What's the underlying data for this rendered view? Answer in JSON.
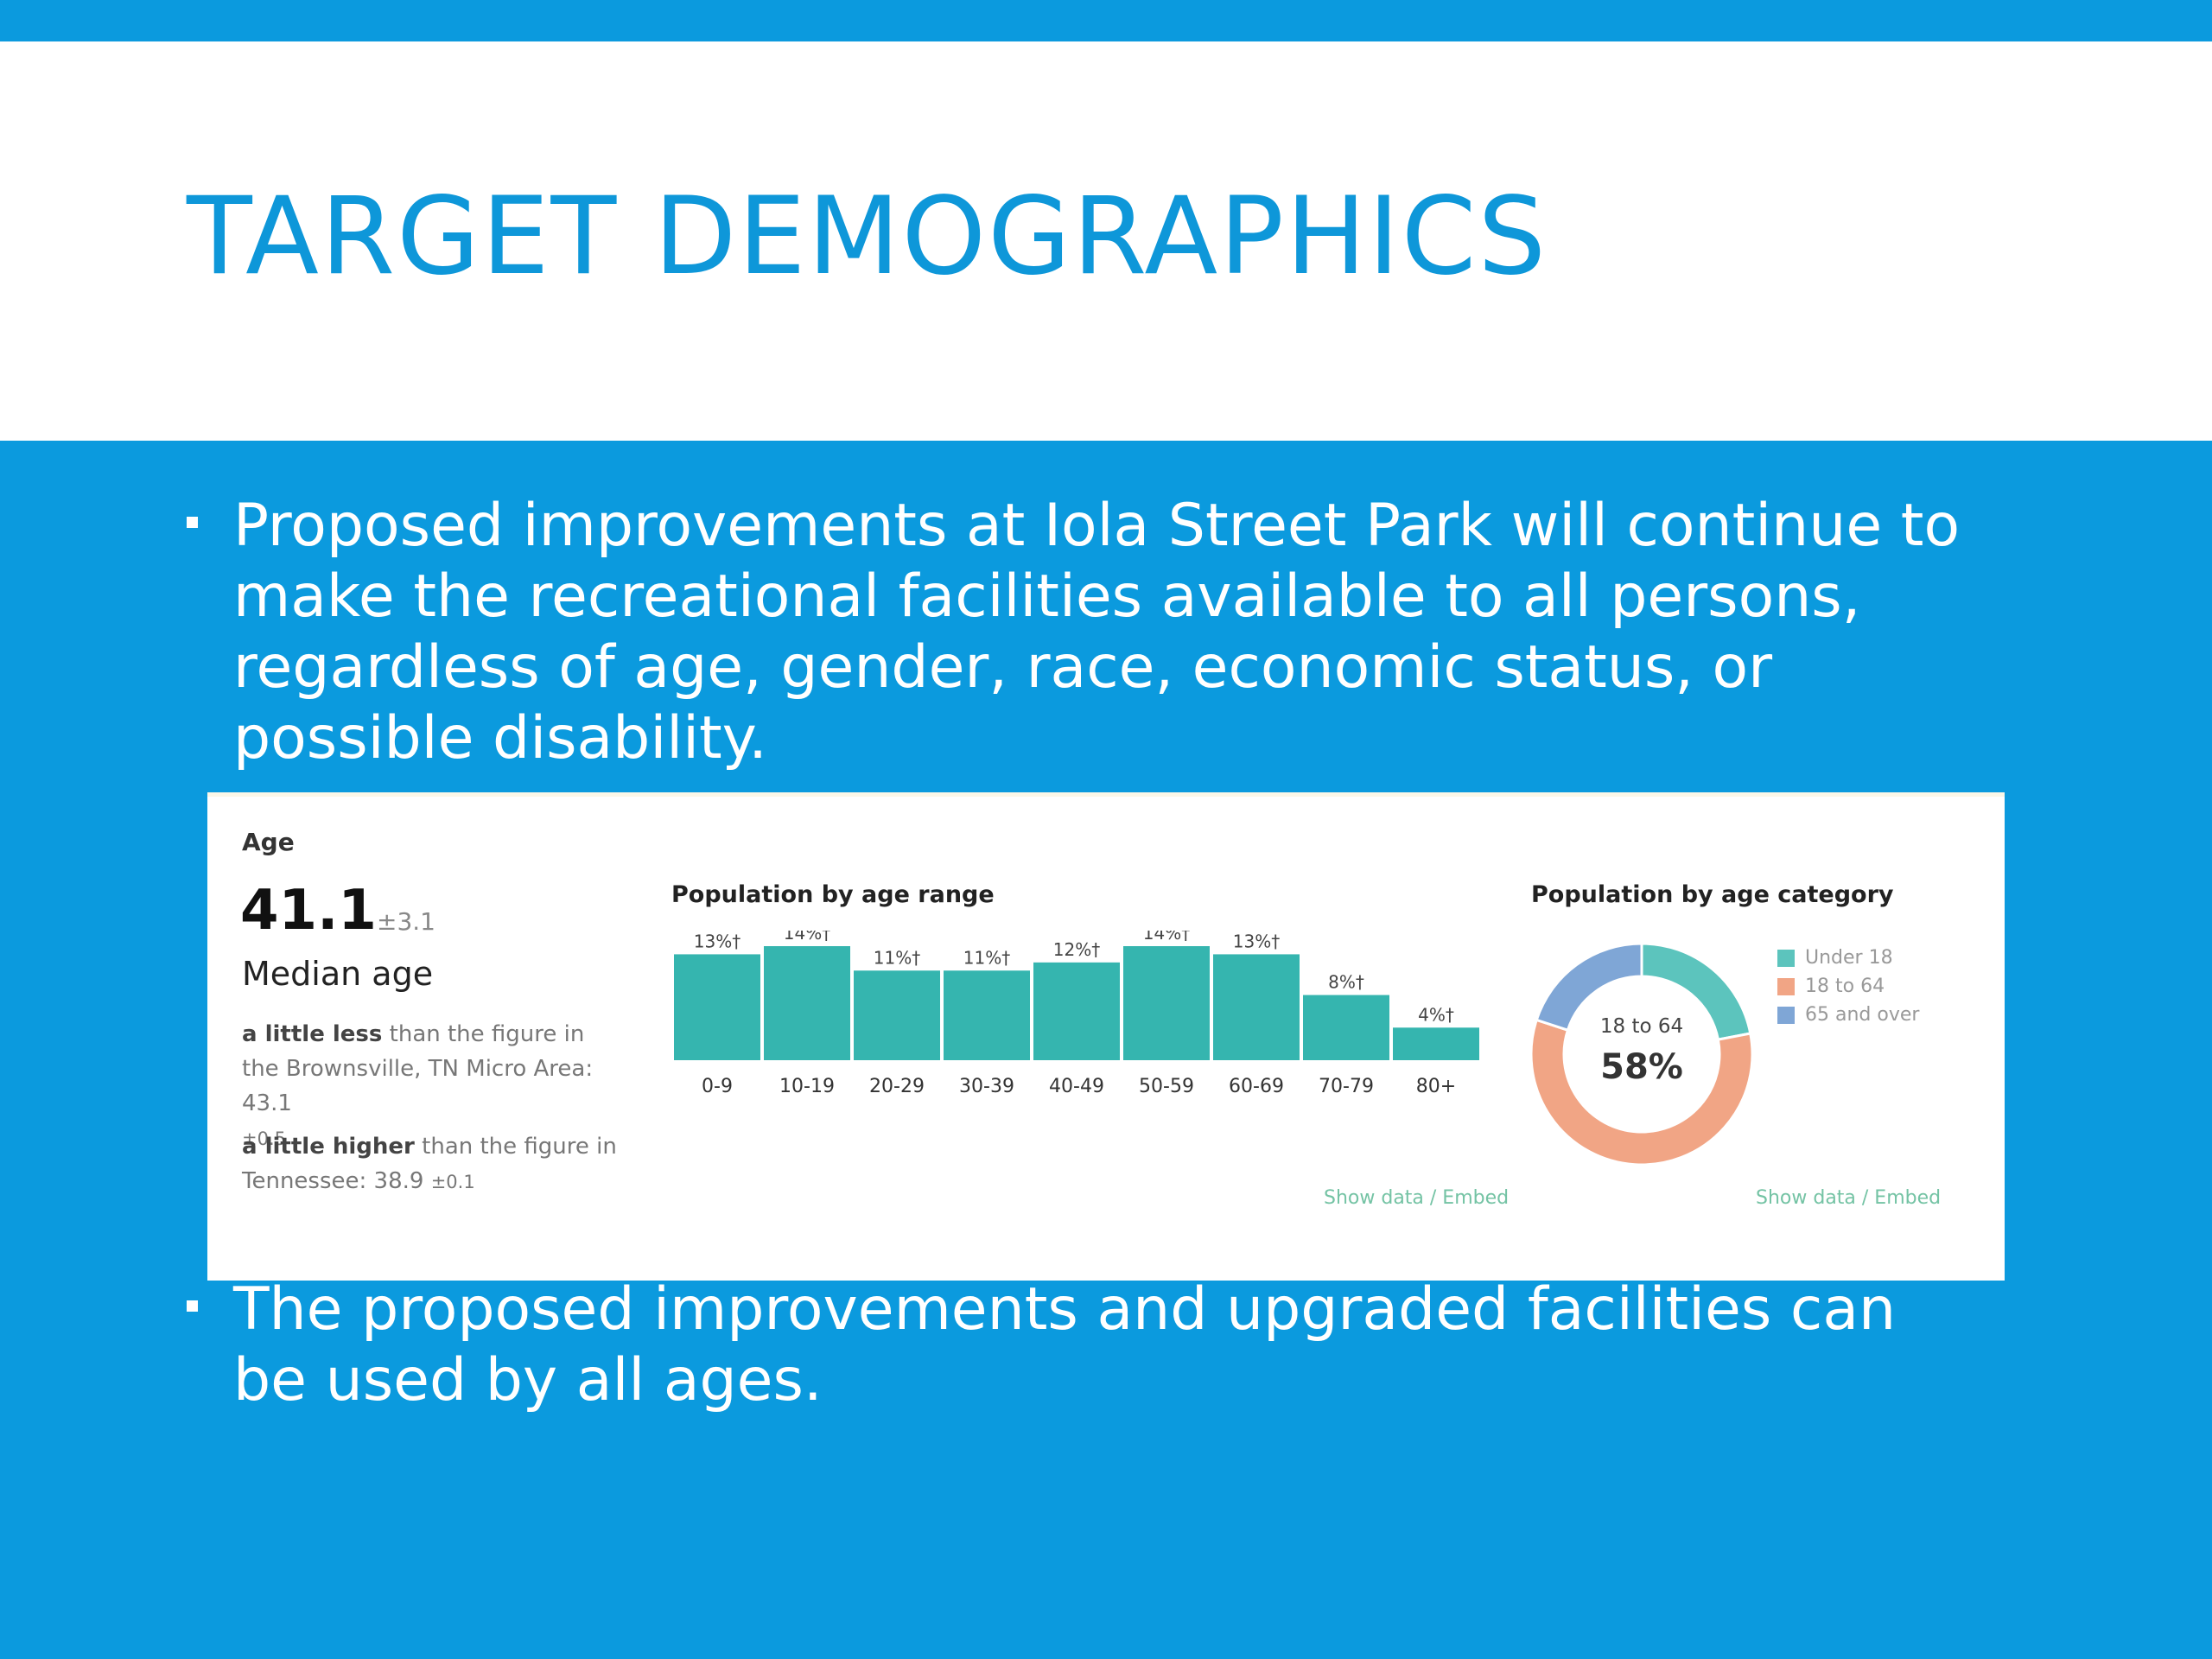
{
  "slide": {
    "title": "TARGET DEMOGRAPHICS",
    "bullets": [
      "Proposed improvements at Iola Street Park will continue to\nmake the recreational facilities available to all persons,\nregardless of age, gender, race, economic status, or\npossible disability.",
      "The proposed improvements and upgraded facilities can\nbe used by all ages."
    ]
  },
  "colors": {
    "background_blue": "#0b9ade",
    "title_blue": "#0e97d9",
    "bar_teal": "#35b5af",
    "under18": "#5cc4bd",
    "age18to64": "#f1a585",
    "age65over": "#7fa6d6",
    "link_green": "#74c3a4"
  },
  "age_panel": {
    "heading": "Age",
    "median_value": "41.1",
    "median_moe": "±3.1",
    "median_label": "Median age",
    "comparison_1": {
      "bold": "a little less",
      "text": " than the figure in the Brownsville, TN Micro Area: 43.1",
      "moe": "±0.5"
    },
    "comparison_2": {
      "bold": "a little higher",
      "text": " than the figure in Tennessee: 38.9",
      "moe": "±0.1"
    },
    "show_data_label": "Show data / Embed"
  },
  "chart_data": [
    {
      "type": "bar",
      "title": "Population by age range",
      "categories": [
        "0-9",
        "10-19",
        "20-29",
        "30-39",
        "40-49",
        "50-59",
        "60-69",
        "70-79",
        "80+"
      ],
      "values": [
        13,
        14,
        11,
        11,
        12,
        14,
        13,
        8,
        4
      ],
      "data_labels": [
        "13%†",
        "14%†",
        "11%†",
        "11%†",
        "12%†",
        "14%†",
        "13%†",
        "8%†",
        "4%†"
      ],
      "unit": "%",
      "xlabel": "",
      "ylabel": "",
      "ylim": [
        0,
        14
      ],
      "grid": false
    },
    {
      "type": "pie",
      "style": "donut",
      "title": "Population by age category",
      "categories": [
        "Under 18",
        "18 to 64",
        "65 and over"
      ],
      "values": [
        22,
        58,
        20
      ],
      "center_label": "18 to 64",
      "center_value": "58%",
      "legend_position": "right"
    }
  ]
}
